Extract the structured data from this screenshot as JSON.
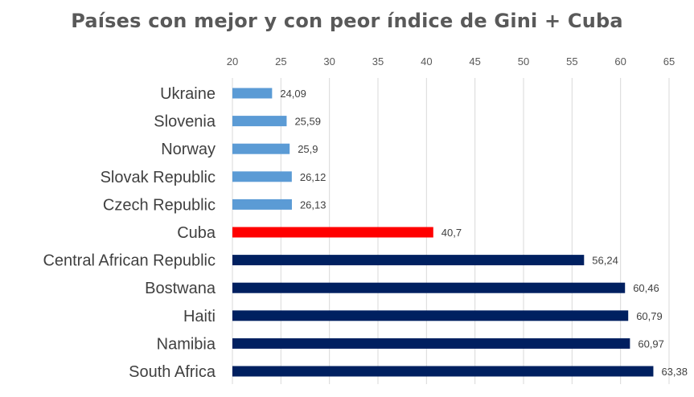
{
  "chart_data": {
    "type": "bar",
    "orientation": "horizontal",
    "title": "Países con mejor y con peor índice de Gini + Cuba",
    "xlabel": "",
    "ylabel": "",
    "xlim": [
      20,
      65
    ],
    "x_ticks": [
      "20",
      "25",
      "30",
      "35",
      "40",
      "45",
      "50",
      "55",
      "60",
      "65"
    ],
    "x_axis_position": "top",
    "grid": true,
    "categories": [
      "Ukraine",
      "Slovenia",
      "Norway",
      "Slovak Republic",
      "Czech Republic",
      "Cuba",
      "Central African Republic",
      "Bostwana",
      "Haiti",
      "Namibia",
      "South Africa"
    ],
    "values": [
      24.09,
      25.59,
      25.9,
      26.12,
      26.13,
      40.7,
      56.24,
      60.46,
      60.79,
      60.97,
      63.38
    ],
    "data_labels": [
      "24,09",
      "25,59",
      "25,9",
      "26,12",
      "26,13",
      "40,7",
      "56,24",
      "60,46",
      "60,79",
      "60,97",
      "63,38"
    ],
    "bar_colors": [
      "#5b9bd5",
      "#5b9bd5",
      "#5b9bd5",
      "#5b9bd5",
      "#5b9bd5",
      "#ff0000",
      "#002060",
      "#002060",
      "#002060",
      "#002060",
      "#002060"
    ]
  }
}
